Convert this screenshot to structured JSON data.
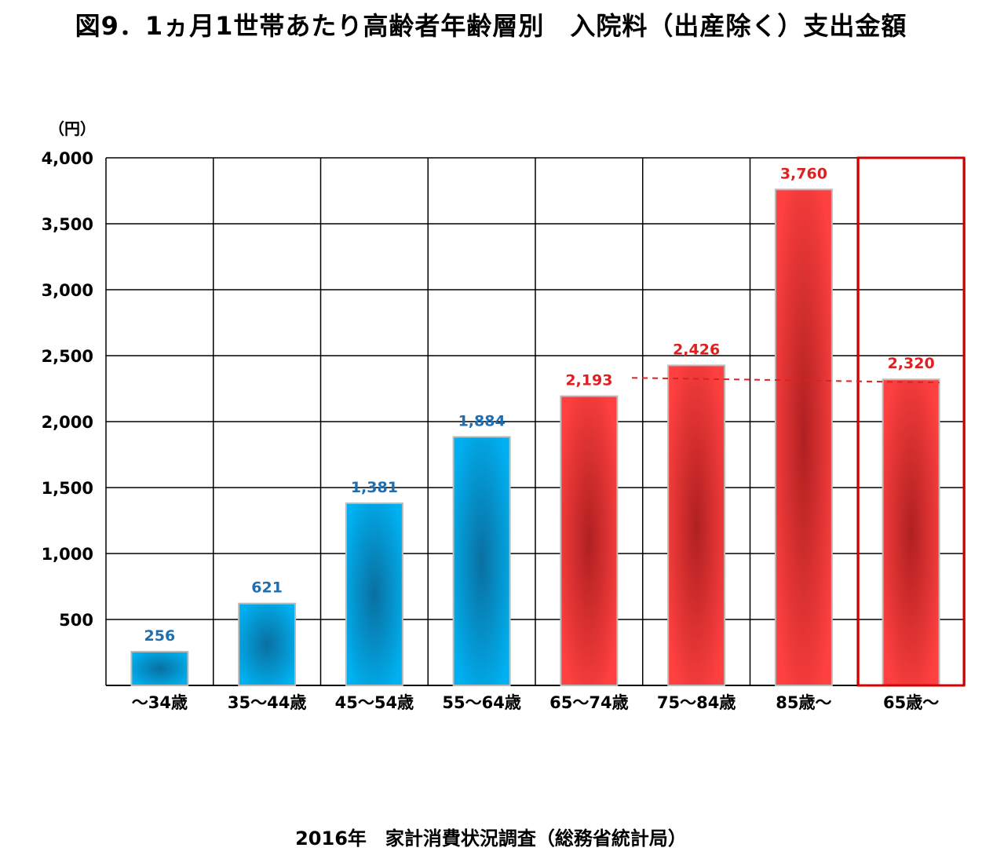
{
  "title": "図9．1ヵ月1世帯あたり高齢者年齢層別　入院料（出産除く）支出金額",
  "source": "2016年　家計消費状況調査（総務省統計局）",
  "colors": {
    "young": "#00b0f0",
    "young_dark": "#0a6fa0",
    "elder": "#ff4040",
    "elder_dark": "#b02020",
    "young_label": "#1f6fb0",
    "elder_label": "#e02020",
    "highlight_border": "#d00000",
    "reference_line": "#e02020",
    "grid": "#000000"
  },
  "chart_data": {
    "type": "bar",
    "title": "図9．1ヵ月1世帯あたり高齢者年齢層別　入院料（出産除く）支出金額",
    "ylabel": "（円）",
    "xlabel": "",
    "ylim": [
      0,
      4000
    ],
    "yticks": [
      500,
      1000,
      1500,
      2000,
      2500,
      3000,
      3500,
      4000
    ],
    "ytick_labels": [
      "500",
      "1,000",
      "1,500",
      "2,000",
      "2,500",
      "3,000",
      "3,500",
      "4,000"
    ],
    "grid": true,
    "categories": [
      "～34歳",
      "35～44歳",
      "45～54歳",
      "55～64歳",
      "65～74歳",
      "75～84歳",
      "85歳～",
      "65歳～"
    ],
    "values": [
      256,
      621,
      1381,
      1884,
      2193,
      2426,
      3760,
      2320
    ],
    "value_labels": [
      "256",
      "621",
      "1,381",
      "1,884",
      "2,193",
      "2,426",
      "3,760",
      "2,320"
    ],
    "groups": [
      "young",
      "young",
      "young",
      "young",
      "elder",
      "elder",
      "elder",
      "elder"
    ],
    "highlight_category": "65歳～",
    "reference_line": {
      "from": "75～84歳",
      "to": "65歳～",
      "value": 2320,
      "style": "dashed"
    }
  }
}
